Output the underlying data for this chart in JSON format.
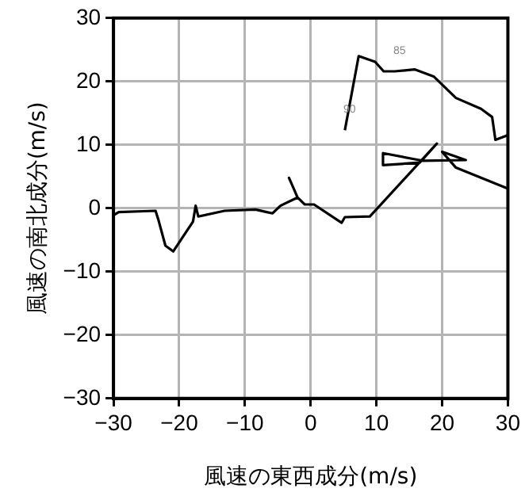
{
  "chart_data": {
    "type": "line",
    "xlabel": "風速の東西成分(m/s)",
    "ylabel": "風速の南北成分(m/s)",
    "xlim": [
      -30,
      30
    ],
    "xticks": [
      -30,
      -20,
      -10,
      0,
      10,
      20,
      30
    ],
    "ylim": [
      -30,
      30
    ],
    "yticks": [
      -30,
      -20,
      -10,
      0,
      10,
      20,
      30
    ],
    "grid": true,
    "legend": false,
    "marker": "none",
    "line_style": "solid",
    "series": [
      {
        "color": "#000000",
        "x": [
          5.2,
          7.3,
          9.8,
          11.1,
          12.8,
          15.8,
          18.7,
          22.1,
          25.9,
          27.6,
          28.1,
          29.7,
          30
        ],
        "values": [
          12.3,
          24,
          23.1,
          21.6,
          21.6,
          21.9,
          20.8,
          17.4,
          15.7,
          14.4,
          10.8,
          11.4,
          11.6
        ]
      },
      {
        "color": "#000000",
        "x": [
          -30,
          -29.2,
          -23.6,
          -23.2,
          -22.1,
          -20.9,
          -17.9,
          -17.5,
          -17.1,
          -13.1,
          -8.4,
          -6.7,
          -5.8,
          -4.6,
          -2,
          -3.3,
          -2,
          -0.9,
          0.5,
          4.7,
          5.2,
          9,
          19.2,
          16.6,
          11,
          11,
          17,
          23.6,
          20,
          22.1,
          30
        ],
        "values": [
          -1.1,
          -0.6,
          -0.4,
          -1.7,
          -5.9,
          -6.8,
          -2.1,
          0.4,
          -1.3,
          -0.4,
          -0.2,
          -0.6,
          -0.8,
          0.4,
          1.7,
          4.8,
          1.7,
          0.6,
          0.6,
          -2.3,
          -1.4,
          -1.3,
          10.2,
          7.2,
          6.8,
          8.7,
          7.5,
          7.6,
          8.9,
          6.4,
          3.1
        ]
      }
    ],
    "annotations": [
      {
        "text": "85",
        "x": 12.8,
        "y": 21.6
      },
      {
        "text": "90",
        "x": 5.2,
        "y": 12.3
      }
    ]
  }
}
